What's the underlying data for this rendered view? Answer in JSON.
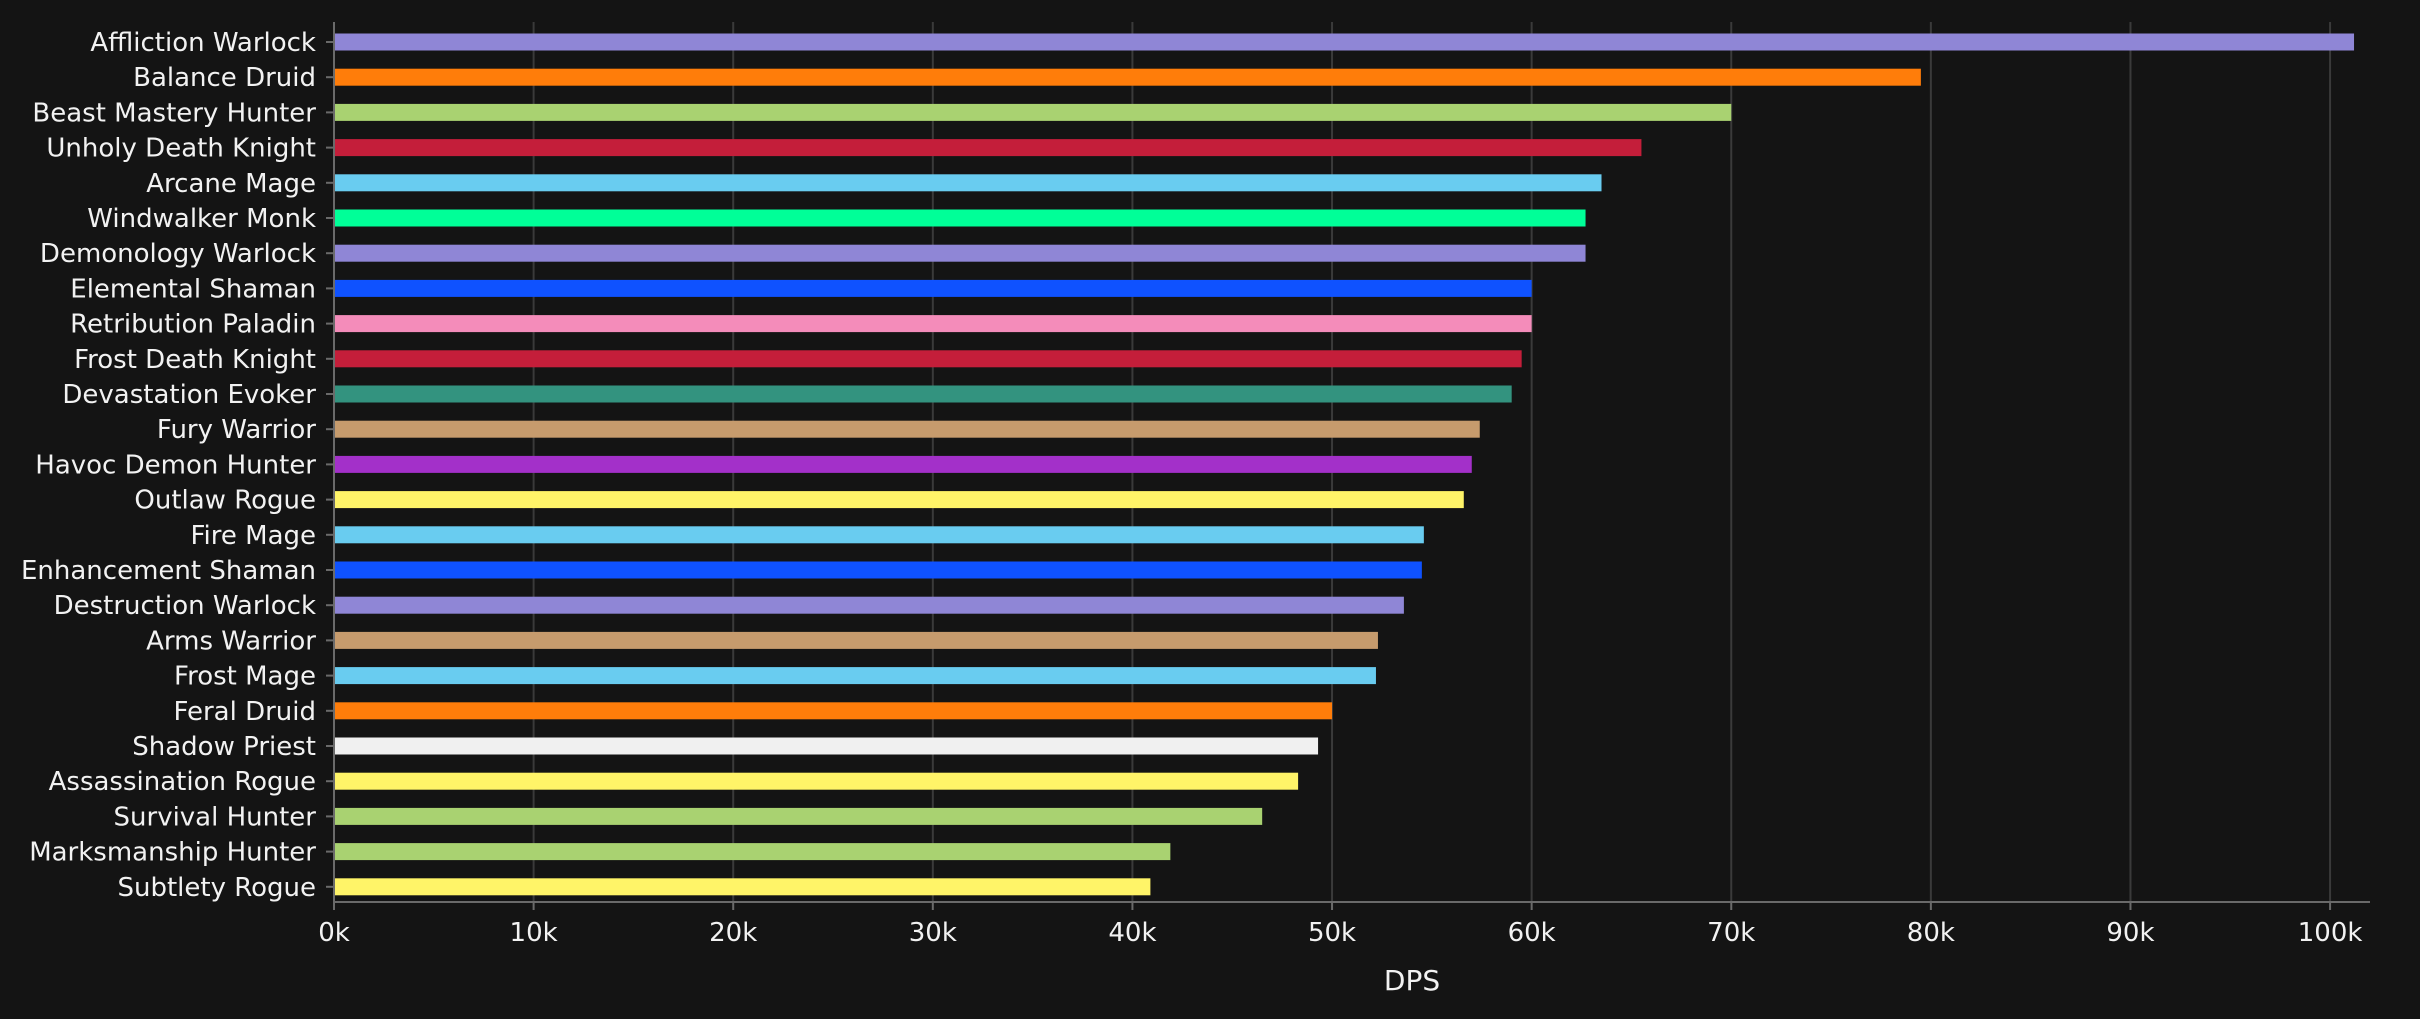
{
  "chart_data": {
    "type": "bar",
    "orientation": "horizontal",
    "xlabel": "DPS",
    "xlim": [
      0,
      102000
    ],
    "xticks": [
      0,
      10000,
      20000,
      30000,
      40000,
      50000,
      60000,
      70000,
      80000,
      90000,
      100000
    ],
    "xtick_labels": [
      "0k",
      "10k",
      "20k",
      "30k",
      "40k",
      "50k",
      "60k",
      "70k",
      "80k",
      "90k",
      "100k"
    ],
    "grid": true,
    "categories": [
      "Affliction Warlock",
      "Balance Druid",
      "Beast Mastery Hunter",
      "Unholy Death Knight",
      "Arcane Mage",
      "Windwalker Monk",
      "Demonology Warlock",
      "Elemental Shaman",
      "Retribution Paladin",
      "Frost Death Knight",
      "Devastation Evoker",
      "Fury Warrior",
      "Havoc Demon Hunter",
      "Outlaw Rogue",
      "Fire Mage",
      "Enhancement Shaman",
      "Destruction Warlock",
      "Arms Warrior",
      "Frost Mage",
      "Feral Druid",
      "Shadow Priest",
      "Assassination Rogue",
      "Survival Hunter",
      "Marksmanship Hunter",
      "Subtlety Rogue"
    ],
    "values": [
      101200,
      79500,
      70000,
      65500,
      63500,
      62700,
      62700,
      60000,
      60000,
      59500,
      59000,
      57400,
      57000,
      56600,
      54600,
      54500,
      53600,
      52300,
      52200,
      50000,
      49300,
      48300,
      46500,
      41900,
      40900
    ],
    "colors": [
      "#8f86d6",
      "#ff7d0a",
      "#a9d271",
      "#c41e3a",
      "#69ccf0",
      "#00ff98",
      "#8f86d6",
      "#0f52ff",
      "#f48cba",
      "#c41e3a",
      "#33937f",
      "#c69b6d",
      "#a330c9",
      "#fff468",
      "#69ccf0",
      "#0f52ff",
      "#8f86d6",
      "#c69b6d",
      "#69ccf0",
      "#ff7d0a",
      "#f0f0f0",
      "#fff468",
      "#a9d271",
      "#a9d271",
      "#fff468"
    ]
  }
}
